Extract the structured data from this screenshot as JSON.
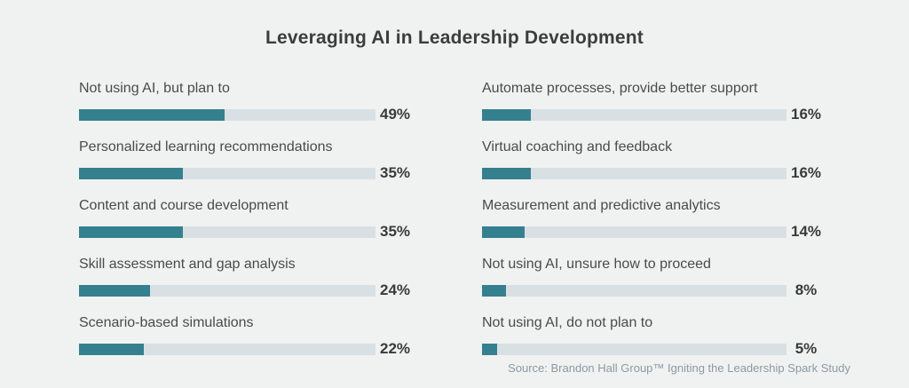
{
  "title": "Leveraging AI in Leadership Development",
  "source": "Source: Brandon Hall Group™ Igniting the Leadership Spark Study",
  "colors": {
    "background": "#f0f2f1",
    "bar_fill": "#35808e",
    "bar_track": "#d9e0e4",
    "title_text": "#3d3d3d",
    "label_text": "#4a4a4a",
    "value_text": "#3a3a3a",
    "source_text": "#8d99a4"
  },
  "chart_data": {
    "type": "bar",
    "orientation": "horizontal",
    "title": "Leveraging AI in Leadership Development",
    "value_format": "percent",
    "xlim": [
      0,
      100
    ],
    "grid": false,
    "legend": false,
    "columns": [
      {
        "name": "left-column",
        "items": [
          {
            "label": "Not using AI, but plan to",
            "value": 49,
            "display": "49%"
          },
          {
            "label": "Personalized learning recommendations",
            "value": 35,
            "display": "35%"
          },
          {
            "label": "Content and course development",
            "value": 35,
            "display": "35%"
          },
          {
            "label": "Skill assessment and gap analysis",
            "value": 24,
            "display": "24%"
          },
          {
            "label": "Scenario-based simulations",
            "value": 22,
            "display": "22%"
          }
        ]
      },
      {
        "name": "right-column",
        "items": [
          {
            "label": "Automate processes, provide better support",
            "value": 16,
            "display": "16%"
          },
          {
            "label": "Virtual coaching and feedback",
            "value": 16,
            "display": "16%"
          },
          {
            "label": "Measurement and predictive analytics",
            "value": 14,
            "display": "14%"
          },
          {
            "label": "Not using AI, unsure how to proceed",
            "value": 8,
            "display": "8%"
          },
          {
            "label": "Not using AI, do not plan to",
            "value": 5,
            "display": "5%"
          }
        ]
      }
    ]
  }
}
